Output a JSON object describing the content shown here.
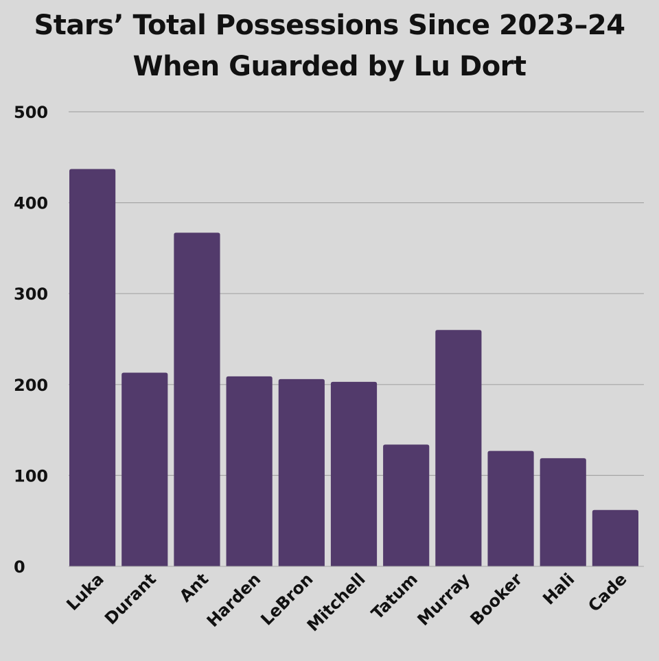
{
  "chart_data": {
    "type": "bar",
    "title_lines": [
      "Stars’ Total Possessions Since 2023–24",
      "When Guarded by Lu Dort"
    ],
    "xlabel": "",
    "ylabel": "",
    "categories": [
      "Luka",
      "Durant",
      "Ant",
      "Harden",
      "LeBron",
      "Mitchell",
      "Tatum",
      "Murray",
      "Booker",
      "Hali",
      "Cade"
    ],
    "values": [
      437,
      213,
      367,
      209,
      206,
      203,
      134,
      260,
      127,
      119,
      62
    ],
    "ylim": [
      0,
      500
    ],
    "yticks": [
      0,
      100,
      200,
      300,
      400,
      500
    ],
    "grid": true,
    "bar_color": "#523a6b",
    "grid_color": "#a6a6a6",
    "background_color": "#d9d9d9"
  }
}
